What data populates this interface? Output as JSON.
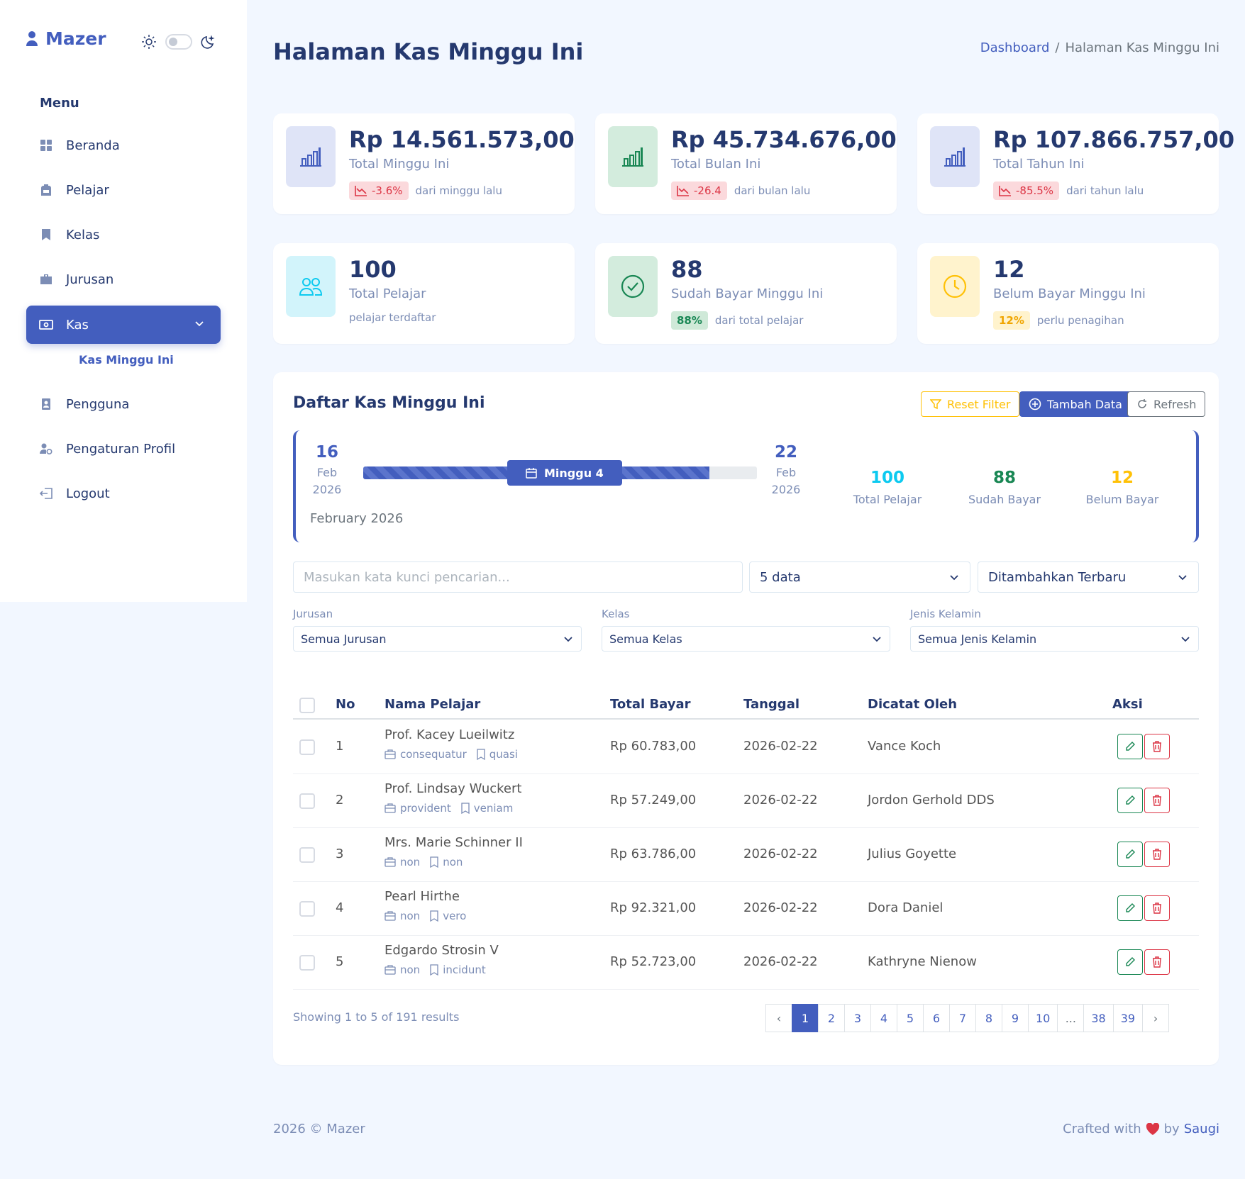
{
  "sidebar": {
    "brand": "Mazer",
    "menu_title": "Menu",
    "items": [
      {
        "label": "Beranda",
        "icon": "grid-icon"
      },
      {
        "label": "Pelajar",
        "icon": "backpack-icon"
      },
      {
        "label": "Kelas",
        "icon": "bookmark-icon"
      },
      {
        "label": "Jurusan",
        "icon": "briefcase-icon"
      },
      {
        "label": "Kas",
        "icon": "cash-icon",
        "active": true
      },
      {
        "label": "Pengguna",
        "icon": "person-badge-icon"
      },
      {
        "label": "Pengaturan Profil",
        "icon": "person-gear-icon"
      },
      {
        "label": "Logout",
        "icon": "logout-icon"
      }
    ],
    "sub_item": "Kas Minggu Ini"
  },
  "header": {
    "title": "Halaman Kas Minggu Ini",
    "breadcrumb": [
      "Dashboard",
      "/",
      "Halaman Kas Minggu Ini"
    ]
  },
  "stats": [
    {
      "value": "Rp 14.561.573,00",
      "label": "Total Minggu Ini",
      "badge": "-3.6%",
      "note": "dari minggu lalu",
      "icon": "bar-chart-icon",
      "color": "#435ebe",
      "bg": "#dfe4f7"
    },
    {
      "value": "Rp 45.734.676,00",
      "label": "Total Bulan Ini",
      "badge": "-26.4",
      "note": "dari bulan lalu",
      "icon": "bar-chart-icon",
      "color": "#198754",
      "bg": "#d3ecdd"
    },
    {
      "value": "Rp 107.866.757,00",
      "label": "Total Tahun Ini",
      "badge": "-85.5%",
      "note": "dari tahun lalu",
      "icon": "bar-chart-icon",
      "color": "#435ebe",
      "bg": "#dfe4f7"
    },
    {
      "value": "100",
      "label": "Total Pelajar",
      "note": "pelajar terdaftar",
      "icon": "people-icon",
      "color": "#0dcaf0",
      "bg": "#d2f4fb"
    },
    {
      "value": "88",
      "label": "Sudah Bayar Minggu Ini",
      "badge": "88%",
      "note": "dari total pelajar",
      "icon": "check-circle-icon",
      "color": "#198754",
      "bg": "#d3ecdd"
    },
    {
      "value": "12",
      "label": "Belum Bayar Minggu Ini",
      "badge": "12%",
      "note": "perlu penagihan",
      "icon": "clock-icon",
      "color": "#ffc107",
      "bg": "#fff3cd"
    }
  ],
  "main": {
    "title": "Daftar Kas Minggu Ini",
    "buttons": {
      "reset": "Reset Filter",
      "add": "Tambah Data",
      "refresh": "Refresh"
    },
    "week": {
      "start_day": "16",
      "start_month": "Feb",
      "start_year": "2026",
      "end_day": "22",
      "end_month": "Feb",
      "end_year": "2026",
      "label": "Minggu 4",
      "month": "February 2026",
      "progress": 0.88,
      "total_pelajar": "100",
      "total_pelajar_label": "Total Pelajar",
      "sudah_bayar": "88",
      "sudah_bayar_label": "Sudah Bayar",
      "belum_bayar": "12",
      "belum_bayar_label": "Belum Bayar"
    },
    "search_placeholder": "Masukan kata kunci pencarian...",
    "per_page": "5 data",
    "sort": "Ditambahkan Terbaru",
    "filters": [
      {
        "label": "Jurusan",
        "value": "Semua Jurusan"
      },
      {
        "label": "Kelas",
        "value": "Semua Kelas"
      },
      {
        "label": "Jenis Kelamin",
        "value": "Semua Jenis Kelamin"
      }
    ],
    "columns": [
      "No",
      "Nama Pelajar",
      "Total Bayar",
      "Tanggal",
      "Dicatat Oleh",
      "Aksi"
    ],
    "rows": [
      {
        "no": "1",
        "name": "Prof. Kacey Lueilwitz",
        "jurusan": "consequatur",
        "kelas": "quasi",
        "total": "Rp 60.783,00",
        "date": "2026-02-22",
        "by": "Vance Koch"
      },
      {
        "no": "2",
        "name": "Prof. Lindsay Wuckert",
        "jurusan": "provident",
        "kelas": "veniam",
        "total": "Rp 57.249,00",
        "date": "2026-02-22",
        "by": "Jordon Gerhold DDS"
      },
      {
        "no": "3",
        "name": "Mrs. Marie Schinner II",
        "jurusan": "non",
        "kelas": "non",
        "total": "Rp 63.786,00",
        "date": "2026-02-22",
        "by": "Julius Goyette"
      },
      {
        "no": "4",
        "name": "Pearl Hirthe",
        "jurusan": "non",
        "kelas": "vero",
        "total": "Rp 92.321,00",
        "date": "2026-02-22",
        "by": "Dora Daniel"
      },
      {
        "no": "5",
        "name": "Edgardo Strosin V",
        "jurusan": "non",
        "kelas": "incidunt",
        "total": "Rp 52.723,00",
        "date": "2026-02-22",
        "by": "Kathryne Nienow"
      }
    ],
    "showing": "Showing 1 to 5 of 191 results",
    "pages": [
      "‹",
      "1",
      "2",
      "3",
      "4",
      "5",
      "6",
      "7",
      "8",
      "9",
      "10",
      "...",
      "38",
      "39",
      "›"
    ],
    "current_page": "1"
  },
  "footer": {
    "left": "2026 © Mazer",
    "right_prefix": "Crafted with",
    "right_by": "by",
    "author": "Saugi"
  }
}
